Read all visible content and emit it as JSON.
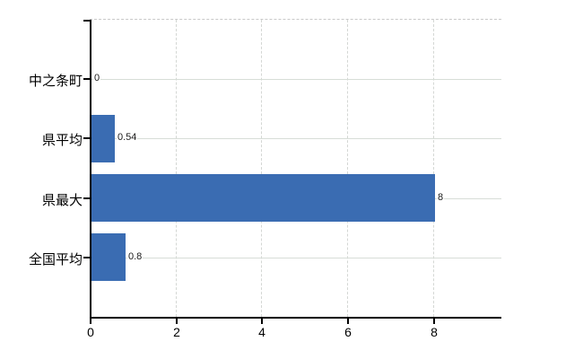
{
  "chart_data": {
    "type": "bar",
    "orientation": "horizontal",
    "title": "",
    "xlabel": "",
    "ylabel": "",
    "categories": [
      "中之条町",
      "県平均",
      "県最大",
      "全国平均"
    ],
    "values": [
      0,
      0.54,
      8,
      0.8
    ],
    "value_labels": [
      "0",
      "0.54",
      "8",
      "0.8"
    ],
    "xticks": [
      0,
      2,
      4,
      6,
      8
    ],
    "xtick_labels": [
      "0",
      "2",
      "4",
      "6",
      "8"
    ],
    "xlim": [
      0,
      9.6
    ],
    "grid": "on",
    "legend": "none",
    "colors": {
      "bar": "#3a6cb2",
      "axis": "#000000",
      "gridline": "#d7ddd7",
      "top_border": "#c9c9c9",
      "background": "#ffffff",
      "text": "#000000"
    }
  }
}
